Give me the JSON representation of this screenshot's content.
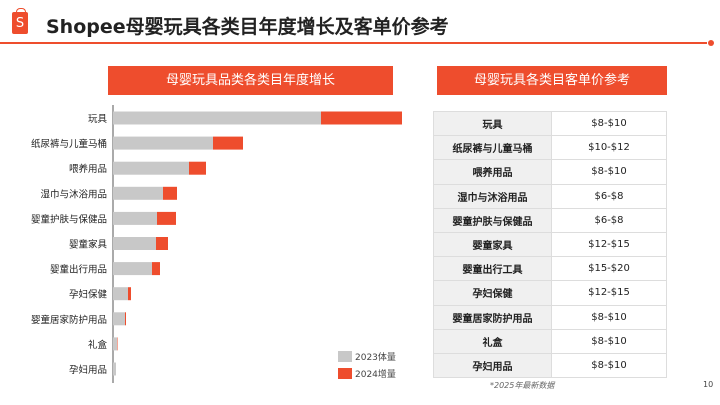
{
  "header": {
    "title": "Shopee母婴玩具各类目年度增长及客单价参考",
    "logo_text": "S"
  },
  "left_panel": {
    "title": "母婴玩具品类各类目年度增长"
  },
  "right_panel": {
    "title": "母婴玩具各类目客单价参考"
  },
  "chart_data": {
    "type": "bar",
    "orientation": "horizontal",
    "stacked": true,
    "categories": [
      "玩具",
      "纸尿裤与儿童马桶",
      "喂养用品",
      "湿巾与沐浴用品",
      "婴童护肤与保健品",
      "婴童家具",
      "婴童出行用品",
      "孕妇保健",
      "婴童居家防护用品",
      "礼盒",
      "孕妇用品"
    ],
    "series": [
      {
        "name": "2023体量",
        "color": "#c8c8c8",
        "values": [
          208,
          100,
          76,
          50,
          44,
          43,
          39,
          15,
          12,
          4,
          3
        ]
      },
      {
        "name": "2024增量",
        "color": "#ee4d2d",
        "values": [
          81,
          30,
          17,
          14,
          19,
          12,
          8,
          3,
          1,
          0.5,
          0
        ]
      }
    ],
    "legend": "bottom-right",
    "grid": false,
    "value_axis_shown": false
  },
  "price_table": {
    "rows": [
      [
        "玩具",
        "$8-$10"
      ],
      [
        "纸尿裤与儿童马桶",
        "$10-$12"
      ],
      [
        "喂养用品",
        "$8-$10"
      ],
      [
        "湿巾与沐浴用品",
        "$6-$8"
      ],
      [
        "婴童护肤与保健品",
        "$6-$8"
      ],
      [
        "婴童家具",
        "$12-$15"
      ],
      [
        "婴童出行工具",
        "$15-$20"
      ],
      [
        "孕妇保健",
        "$12-$15"
      ],
      [
        "婴童居家防护用品",
        "$8-$10"
      ],
      [
        "礼盒",
        "$8-$10"
      ],
      [
        "孕妇用品",
        "$8-$10"
      ]
    ]
  },
  "footnote": "*2025年最新数据",
  "page_number": "10",
  "colors": {
    "accent": "#ee4d2d",
    "gray": "#c8c8c8"
  }
}
